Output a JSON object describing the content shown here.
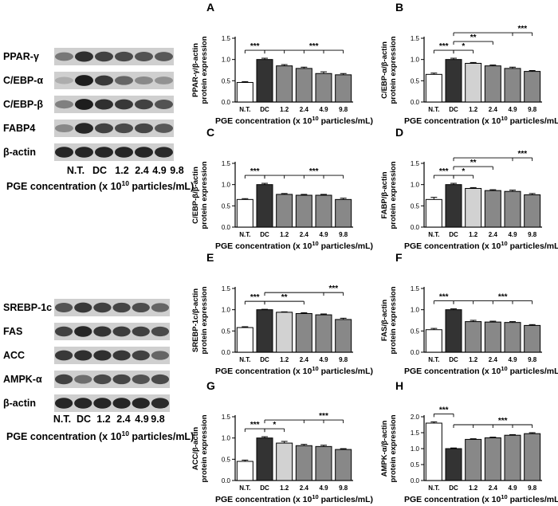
{
  "blot_sets": [
    {
      "bands": [
        "PPAR-γ",
        "C/EBP-α",
        "C/EBP-β",
        "FABP4",
        "β-actin"
      ],
      "lanes": [
        "N.T.",
        "DC",
        "1.2",
        "2.4",
        "4.9",
        "9.8"
      ],
      "xlabel_main": "PGE concentration (x 10",
      "xlabel_sup": "10",
      "xlabel_tail": " particles/mL)"
    },
    {
      "bands": [
        "SREBP-1c",
        "FAS",
        "ACC",
        "AMPK-α",
        "β-actin"
      ],
      "lanes": [
        "N.T.",
        "DC",
        "1.2",
        "2.4",
        "4.9",
        "9.8"
      ],
      "xlabel_main": "PGE concentration (x 10",
      "xlabel_sup": "10",
      "xlabel_tail": " particles/mL)"
    }
  ],
  "colors": {
    "nt": "#ffffff",
    "dc": "#333333",
    "light": "#d2d2d2",
    "mid": "#888888",
    "outline": "#000000"
  },
  "chart_data": [
    {
      "panel": "A",
      "type": "bar",
      "ylabel": [
        "PPAR-γ/β-actin",
        "protein expression"
      ],
      "categories": [
        "N.T.",
        "DC",
        "1.2",
        "2.4",
        "4.9",
        "9.8"
      ],
      "values": [
        0.46,
        1.0,
        0.85,
        0.79,
        0.67,
        0.64
      ],
      "errors": [
        0.02,
        0.03,
        0.03,
        0.03,
        0.04,
        0.03
      ],
      "fills": [
        "nt",
        "dc",
        "mid",
        "mid",
        "mid",
        "mid"
      ],
      "ylim": [
        0,
        1.5
      ],
      "yticks": [
        "0.0",
        "0.5",
        "1.0",
        "1.5"
      ],
      "xlabel_main": "PGE concentration (x 10",
      "xlabel_sup": "10",
      "xlabel_tail": " particles/mL)",
      "significance": [
        {
          "from": 0,
          "to": 1,
          "label": "***"
        },
        {
          "from": 1,
          "to": [
            2,
            3,
            4,
            5
          ],
          "label": "***"
        }
      ]
    },
    {
      "panel": "B",
      "type": "bar",
      "ylabel": [
        "C/EBP-α/β-actin",
        "protein expression"
      ],
      "categories": [
        "N.T.",
        "DC",
        "1.2",
        "2.4",
        "4.9",
        "9.8"
      ],
      "values": [
        0.65,
        1.0,
        0.91,
        0.85,
        0.79,
        0.72
      ],
      "errors": [
        0.03,
        0.03,
        0.02,
        0.02,
        0.03,
        0.02
      ],
      "fills": [
        "nt",
        "dc",
        "light",
        "mid",
        "mid",
        "mid"
      ],
      "ylim": [
        0,
        1.5
      ],
      "yticks": [
        "0.0",
        "0.5",
        "1.0",
        "1.5"
      ],
      "xlabel_main": "PGE concentration (x 10",
      "xlabel_sup": "10",
      "xlabel_tail": " particles/mL)",
      "significance": [
        {
          "from": 0,
          "to": 1,
          "label": "***"
        },
        {
          "from": 1,
          "to": 2,
          "label": "*"
        },
        {
          "from": 1,
          "to": 3,
          "label": "**"
        },
        {
          "from": 1,
          "to": [
            4,
            5
          ],
          "label": "***"
        }
      ]
    },
    {
      "panel": "C",
      "type": "bar",
      "ylabel": [
        "C/EBP-β/β-actin",
        "protein expression"
      ],
      "categories": [
        "N.T.",
        "DC",
        "1.2",
        "2.4",
        "4.9",
        "9.8"
      ],
      "values": [
        0.65,
        1.0,
        0.77,
        0.75,
        0.75,
        0.65
      ],
      "errors": [
        0.02,
        0.03,
        0.02,
        0.02,
        0.02,
        0.03
      ],
      "fills": [
        "nt",
        "dc",
        "mid",
        "mid",
        "mid",
        "mid"
      ],
      "ylim": [
        0,
        1.5
      ],
      "yticks": [
        "0.0",
        "0.5",
        "1.0",
        "1.5"
      ],
      "xlabel_main": "PGE concentration (x 10",
      "xlabel_sup": "10",
      "xlabel_tail": " particles/mL)",
      "significance": [
        {
          "from": 0,
          "to": 1,
          "label": "***"
        },
        {
          "from": 1,
          "to": [
            2,
            3,
            4,
            5
          ],
          "label": "***"
        }
      ]
    },
    {
      "panel": "D",
      "type": "bar",
      "ylabel": [
        "FABP/β-actin",
        "protein expression"
      ],
      "categories": [
        "N.T.",
        "DC",
        "1.2",
        "2.4",
        "4.9",
        "9.8"
      ],
      "values": [
        0.65,
        1.0,
        0.91,
        0.86,
        0.84,
        0.76
      ],
      "errors": [
        0.05,
        0.03,
        0.02,
        0.02,
        0.03,
        0.03
      ],
      "fills": [
        "nt",
        "dc",
        "light",
        "mid",
        "mid",
        "mid"
      ],
      "ylim": [
        0,
        1.5
      ],
      "yticks": [
        "0.0",
        "0.5",
        "1.0",
        "1.5"
      ],
      "xlabel_main": "PGE concentration (x 10",
      "xlabel_sup": "10",
      "xlabel_tail": " particles/mL)",
      "significance": [
        {
          "from": 0,
          "to": 1,
          "label": "***"
        },
        {
          "from": 1,
          "to": 2,
          "label": "*"
        },
        {
          "from": 1,
          "to": 3,
          "label": "**"
        },
        {
          "from": 1,
          "to": [
            4,
            5
          ],
          "label": "***"
        }
      ]
    },
    {
      "panel": "E",
      "type": "bar",
      "ylabel": [
        "SREBP-1c/β-actin",
        "protein expression"
      ],
      "categories": [
        "N.T.",
        "DC",
        "1.2",
        "2.4",
        "4.9",
        "9.8"
      ],
      "values": [
        0.58,
        1.0,
        0.94,
        0.91,
        0.88,
        0.77
      ],
      "errors": [
        0.02,
        0.01,
        0.01,
        0.02,
        0.02,
        0.03
      ],
      "fills": [
        "nt",
        "dc",
        "light",
        "mid",
        "mid",
        "mid"
      ],
      "ylim": [
        0,
        1.5
      ],
      "yticks": [
        "0.0",
        "0.5",
        "1.0",
        "1.5"
      ],
      "xlabel_main": "PGE concentration (x 10",
      "xlabel_sup": "10",
      "xlabel_tail": " particles/mL)",
      "significance": [
        {
          "from": 0,
          "to": 1,
          "label": "***"
        },
        {
          "from": 1,
          "to": 3,
          "label": "**"
        },
        {
          "from": 1,
          "to": [
            4,
            5
          ],
          "label": "***"
        }
      ]
    },
    {
      "panel": "F",
      "type": "bar",
      "ylabel": [
        "FAS/β-actin",
        "protein expression"
      ],
      "categories": [
        "N.T.",
        "DC",
        "1.2",
        "2.4",
        "4.9",
        "9.8"
      ],
      "values": [
        0.53,
        1.0,
        0.72,
        0.71,
        0.7,
        0.63
      ],
      "errors": [
        0.03,
        0.02,
        0.03,
        0.02,
        0.02,
        0.02
      ],
      "fills": [
        "nt",
        "dc",
        "mid",
        "mid",
        "mid",
        "mid"
      ],
      "ylim": [
        0,
        1.5
      ],
      "yticks": [
        "0.0",
        "0.5",
        "1.0",
        "1.5"
      ],
      "xlabel_main": "PGE concentration (x 10",
      "xlabel_sup": "10",
      "xlabel_tail": " particles/mL)",
      "significance": [
        {
          "from": 0,
          "to": 1,
          "label": "***"
        },
        {
          "from": 1,
          "to": [
            2,
            3,
            4,
            5
          ],
          "label": "***"
        }
      ]
    },
    {
      "panel": "G",
      "type": "bar",
      "ylabel": [
        "ACC/β-actin",
        "protein expression"
      ],
      "categories": [
        "N.T.",
        "DC",
        "1.2",
        "2.4",
        "4.9",
        "9.8"
      ],
      "values": [
        0.45,
        1.0,
        0.88,
        0.82,
        0.8,
        0.73
      ],
      "errors": [
        0.03,
        0.03,
        0.04,
        0.03,
        0.03,
        0.02
      ],
      "fills": [
        "nt",
        "dc",
        "light",
        "mid",
        "mid",
        "mid"
      ],
      "ylim": [
        0,
        1.5
      ],
      "yticks": [
        "0.0",
        "0.5",
        "1.0",
        "1.5"
      ],
      "xlabel_main": "PGE concentration (x 10",
      "xlabel_sup": "10",
      "xlabel_tail": " particles/mL)",
      "significance": [
        {
          "from": 0,
          "to": 1,
          "label": "***"
        },
        {
          "from": 1,
          "to": 2,
          "label": "*"
        },
        {
          "from": 1,
          "to": [
            3,
            4,
            5
          ],
          "label": "***"
        }
      ]
    },
    {
      "panel": "H",
      "type": "bar",
      "ylabel": [
        "AMPK-α/β-actin",
        "protein expression"
      ],
      "categories": [
        "N.T.",
        "DC",
        "1.2",
        "2.4",
        "4.9",
        "9.8"
      ],
      "values": [
        1.8,
        1.0,
        1.29,
        1.34,
        1.42,
        1.47
      ],
      "errors": [
        0.04,
        0.02,
        0.02,
        0.02,
        0.02,
        0.03
      ],
      "fills": [
        "nt",
        "dc",
        "mid",
        "mid",
        "mid",
        "mid"
      ],
      "ylim": [
        0,
        2.0
      ],
      "yticks": [
        "0.0",
        "0.5",
        "1.0",
        "1.5",
        "2.0"
      ],
      "xlabel_main": "PGE concentration (x 10",
      "xlabel_sup": "10",
      "xlabel_tail": " particles/mL)",
      "significance": [
        {
          "from": 0,
          "to": 1,
          "label": "***"
        },
        {
          "from": 1,
          "to": [
            2,
            3,
            4,
            5
          ],
          "label": "***"
        }
      ]
    }
  ]
}
